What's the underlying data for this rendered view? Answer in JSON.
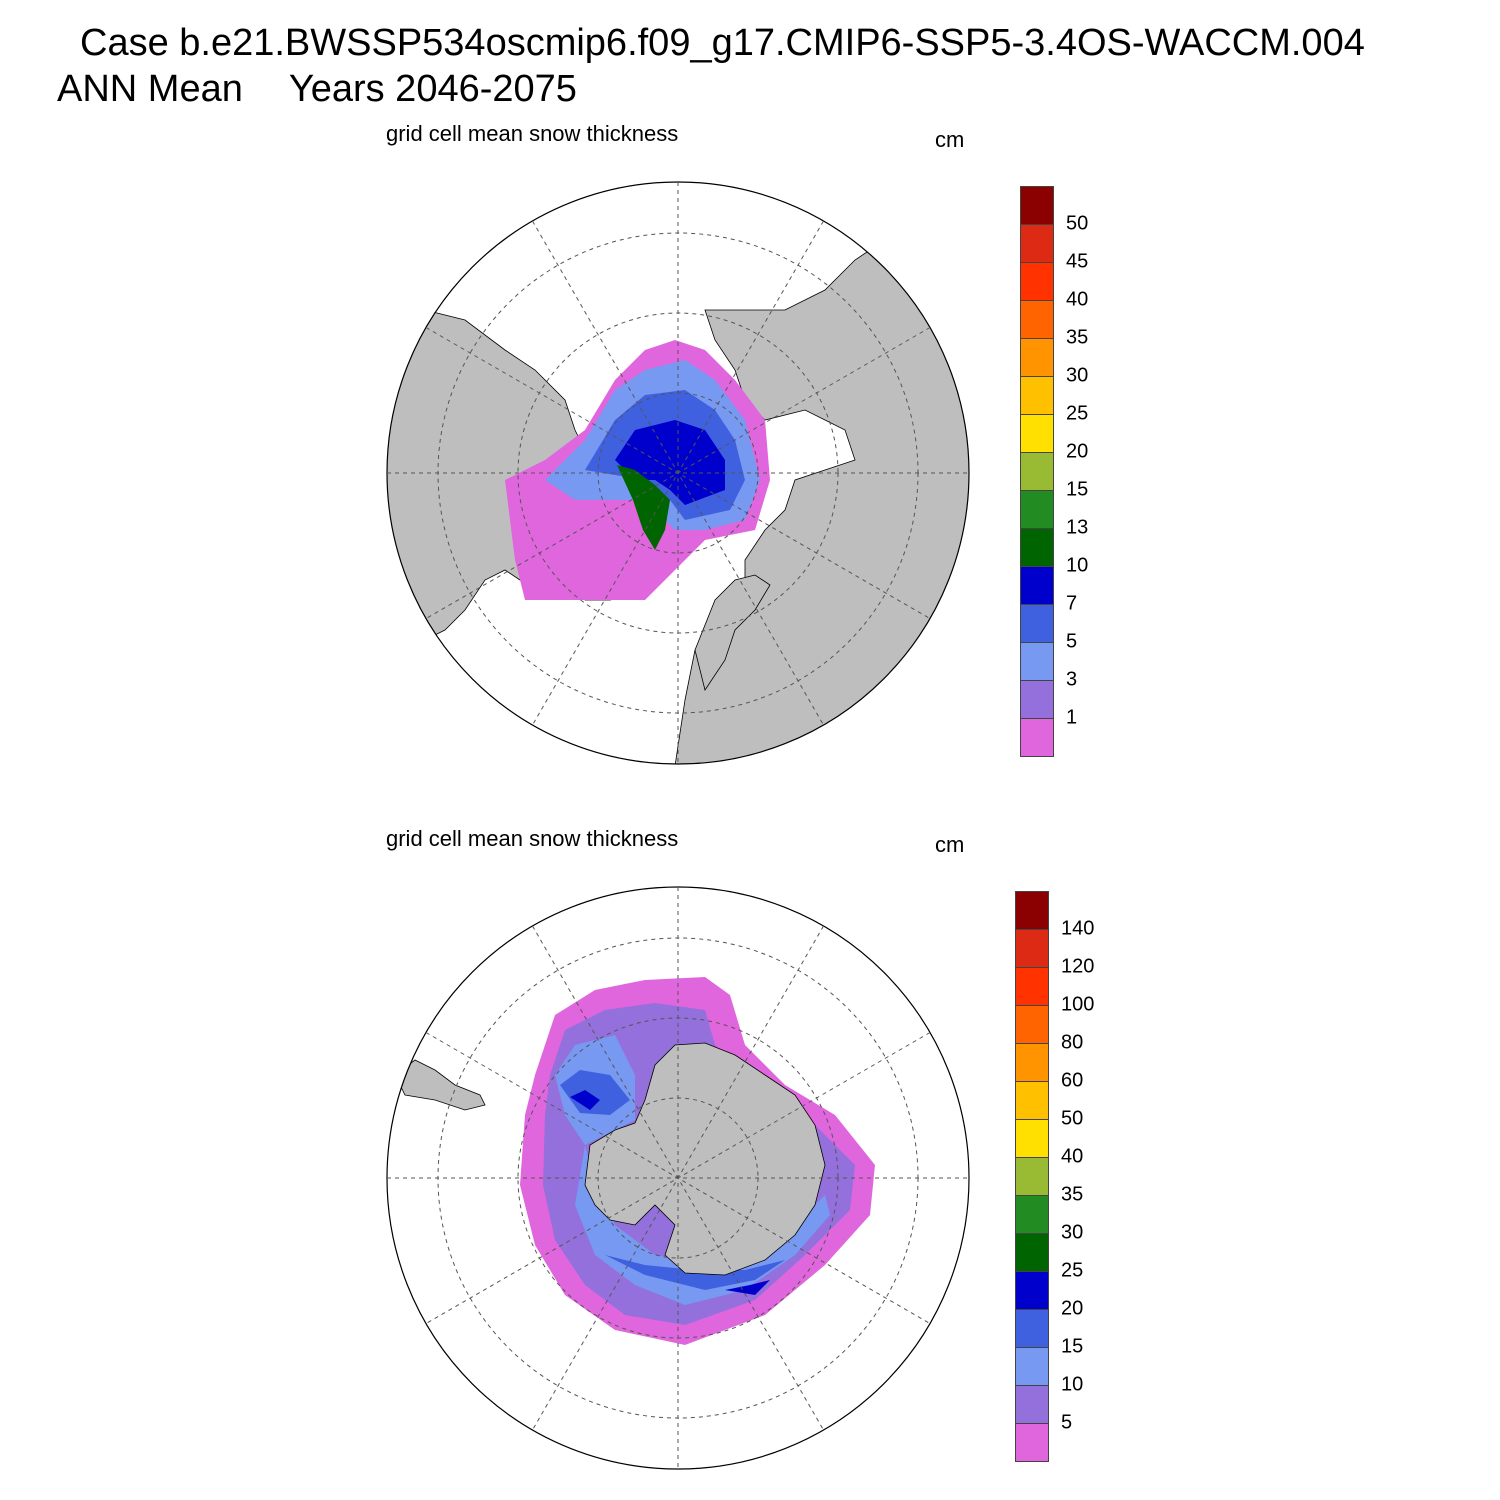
{
  "header": {
    "case_line": "Case b.e21.BWSSP534oscmip6.f09_g17.CMIP6-SSP5-3.4OS-WACCM.004",
    "season": "ANN Mean",
    "years": "Years 2046-2075"
  },
  "colors": {
    "land": "#bebebe",
    "ocean": "#ffffff",
    "scale": [
      "#e066dd",
      "#9370db",
      "#7799f2",
      "#3f61e0",
      "#0000cd",
      "#006400",
      "#228b22",
      "#99bb33",
      "#ffe000",
      "#ffc000",
      "#ff9400",
      "#ff6400",
      "#ff3200",
      "#dd2a14",
      "#8b0000"
    ]
  },
  "panels": [
    {
      "id": "arctic",
      "title": "grid cell mean snow thickness",
      "units": "cm",
      "hemisphere": "north",
      "levels": [
        "1",
        "3",
        "5",
        "7",
        "10",
        "13",
        "15",
        "20",
        "25",
        "30",
        "35",
        "40",
        "45",
        "50"
      ]
    },
    {
      "id": "antarctic",
      "title": "grid cell mean snow thickness",
      "units": "cm",
      "hemisphere": "south",
      "levels": [
        "5",
        "10",
        "15",
        "20",
        "25",
        "30",
        "35",
        "40",
        "50",
        "60",
        "80",
        "100",
        "120",
        "140"
      ]
    }
  ]
}
